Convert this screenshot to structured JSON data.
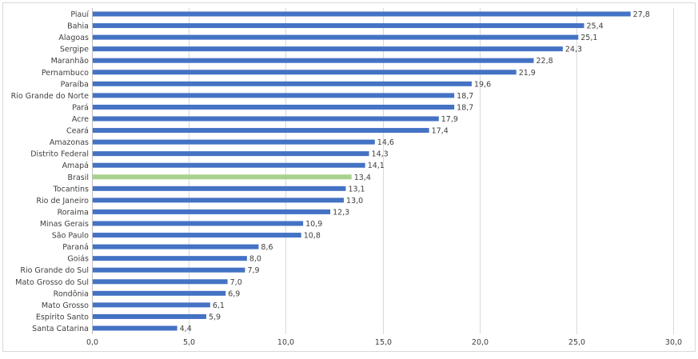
{
  "chart_data": {
    "type": "bar",
    "orientation": "horizontal",
    "title": "",
    "xlabel": "",
    "ylabel": "",
    "xlim": [
      0,
      30
    ],
    "x_ticks": [
      "0,0",
      "5,0",
      "10,0",
      "15,0",
      "20,0",
      "25,0",
      "30,0"
    ],
    "x_tick_values": [
      0,
      5,
      10,
      15,
      20,
      25,
      30
    ],
    "grid": true,
    "categories": [
      "Piauí",
      "Bahia",
      "Alagoas",
      "Sergipe",
      "Maranhão",
      "Pernambuco",
      "Paraíba",
      "Rio Grande do Norte",
      "Pará",
      "Acre",
      "Ceará",
      "Amazonas",
      "Distrito Federal",
      "Amapá",
      "Brasil",
      "Tocantins",
      "Rio de Janeiro",
      "Roraima",
      "Minas Gerais",
      "São Paulo",
      "Paraná",
      "Goiás",
      "Rio Grande do Sul",
      "Mato Grosso do Sul",
      "Rondônia",
      "Mato Grosso",
      "Espírito Santo",
      "Santa Catarina"
    ],
    "values": [
      27.8,
      25.4,
      25.1,
      24.3,
      22.8,
      21.9,
      19.6,
      18.7,
      18.7,
      17.9,
      17.4,
      14.6,
      14.3,
      14.1,
      13.4,
      13.1,
      13.0,
      12.3,
      10.9,
      10.8,
      8.6,
      8.0,
      7.9,
      7.0,
      6.9,
      6.1,
      5.9,
      4.4
    ],
    "value_labels": [
      "27,8",
      "25,4",
      "25,1",
      "24,3",
      "22,8",
      "21,9",
      "19,6",
      "18,7",
      "18,7",
      "17,9",
      "17,4",
      "14,6",
      "14,3",
      "14,1",
      "13,4",
      "13,1",
      "13,0",
      "12,3",
      "10,9",
      "10,8",
      "8,6",
      "8,0",
      "7,9",
      "7,0",
      "6,9",
      "6,1",
      "5,9",
      "4,4"
    ],
    "highlight_category": "Brasil",
    "colors": {
      "bar": "#4472c4",
      "highlight": "#a9d18e",
      "grid": "#d9d9d9"
    }
  }
}
